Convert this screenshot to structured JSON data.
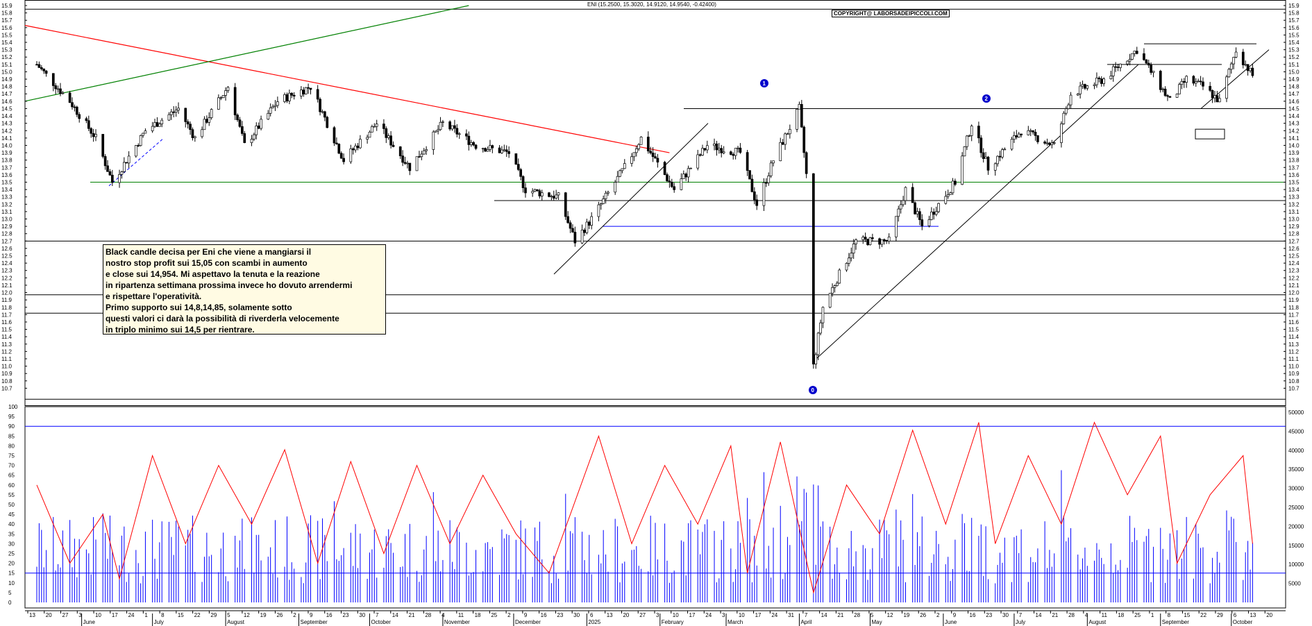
{
  "chart_data": [
    {
      "type": "candlestick",
      "title": "ENI (15.2500, 15.3020, 14.9120, 14.9540, -0.42400)",
      "watermark": "COPYRIGHT@ LABORSADEIPICCOLI.COM",
      "ylim": [
        10.6,
        15.9
      ],
      "y_ticks": [
        "15.9",
        "15.8",
        "15.7",
        "15.6",
        "15.5",
        "15.4",
        "15.3",
        "15.2",
        "15.1",
        "15.0",
        "14.9",
        "14.8",
        "14.7",
        "14.6",
        "14.5",
        "14.4",
        "14.3",
        "14.2",
        "14.1",
        "14.0",
        "13.9",
        "13.8",
        "13.7",
        "13.6",
        "13.5",
        "13.4",
        "13.3",
        "13.2",
        "13.1",
        "13.0",
        "12.9",
        "12.8",
        "12.7",
        "12.6",
        "12.5",
        "12.4",
        "12.3",
        "12.2",
        "12.1",
        "12.0",
        "11.9",
        "11.8",
        "11.7",
        "11.6",
        "11.5",
        "11.4",
        "11.3",
        "11.2",
        "11.1",
        "11.0",
        "10.9",
        "10.8",
        "10.7"
      ],
      "horizontal_levels": [
        15.85,
        14.5,
        13.5,
        13.25,
        12.9,
        12.7,
        11.97,
        11.72,
        10.55
      ],
      "trendlines": [
        {
          "color": "#ff0000",
          "from": [
            "2024-05-08",
            15.63
          ],
          "to": [
            "2025-02-05",
            13.9
          ]
        },
        {
          "color": "#008000",
          "from": [
            "2024-05-08",
            14.6
          ],
          "to": [
            "2024-11-12",
            15.9
          ]
        }
      ],
      "markers": [
        "1",
        "2",
        "0"
      ],
      "series": [
        {
          "x": "2024-05-13",
          "value": 15.1
        },
        {
          "x": "2024-05-27",
          "value": 14.6
        },
        {
          "x": "2024-06-07",
          "value": 14.1
        },
        {
          "x": "2024-06-14",
          "value": 13.5
        },
        {
          "x": "2024-06-28",
          "value": 14.2
        },
        {
          "x": "2024-07-12",
          "value": 14.5
        },
        {
          "x": "2024-07-19",
          "value": 14.1
        },
        {
          "x": "2024-08-02",
          "value": 14.8
        },
        {
          "x": "2024-08-09",
          "value": 14.0
        },
        {
          "x": "2024-08-23",
          "value": 14.6
        },
        {
          "x": "2024-09-06",
          "value": 14.8
        },
        {
          "x": "2024-09-20",
          "value": 13.8
        },
        {
          "x": "2024-10-04",
          "value": 14.3
        },
        {
          "x": "2024-10-18",
          "value": 13.7
        },
        {
          "x": "2024-11-01",
          "value": 14.3
        },
        {
          "x": "2024-11-15",
          "value": 14.0
        },
        {
          "x": "2024-11-29",
          "value": 13.9
        },
        {
          "x": "2024-12-06",
          "value": 13.4
        },
        {
          "x": "2024-12-20",
          "value": 13.3
        },
        {
          "x": "2024-12-27",
          "value": 12.7
        },
        {
          "x": "2025-01-03",
          "value": 13.0
        },
        {
          "x": "2025-01-17",
          "value": 13.7
        },
        {
          "x": "2025-01-24",
          "value": 14.1
        },
        {
          "x": "2025-02-07",
          "value": 13.4
        },
        {
          "x": "2025-02-21",
          "value": 14.0
        },
        {
          "x": "2025-03-07",
          "value": 13.9
        },
        {
          "x": "2025-03-14",
          "value": 13.2
        },
        {
          "x": "2025-03-21",
          "value": 13.8
        },
        {
          "x": "2025-04-01",
          "value": 14.5
        },
        {
          "x": "2025-04-04",
          "value": 13.6
        },
        {
          "x": "2025-04-07",
          "value": 11.0
        },
        {
          "x": "2025-04-11",
          "value": 11.8
        },
        {
          "x": "2025-04-25",
          "value": 12.7
        },
        {
          "x": "2025-05-09",
          "value": 12.7
        },
        {
          "x": "2025-05-16",
          "value": 13.4
        },
        {
          "x": "2025-05-23",
          "value": 12.9
        },
        {
          "x": "2025-06-06",
          "value": 13.5
        },
        {
          "x": "2025-06-13",
          "value": 14.3
        },
        {
          "x": "2025-06-20",
          "value": 13.7
        },
        {
          "x": "2025-07-04",
          "value": 14.2
        },
        {
          "x": "2025-07-18",
          "value": 14.0
        },
        {
          "x": "2025-07-25",
          "value": 14.7
        },
        {
          "x": "2025-08-08",
          "value": 14.9
        },
        {
          "x": "2025-08-22",
          "value": 15.3
        },
        {
          "x": "2025-09-05",
          "value": 14.6
        },
        {
          "x": "2025-09-12",
          "value": 14.9
        },
        {
          "x": "2025-09-19",
          "value": 14.8
        },
        {
          "x": "2025-09-26",
          "value": 14.6
        },
        {
          "x": "2025-10-03",
          "value": 15.3
        },
        {
          "x": "2025-10-10",
          "value": 14.95
        }
      ]
    },
    {
      "type": "line",
      "ylim": [
        0,
        100
      ],
      "y_ticks": [
        "100",
        "95",
        "90",
        "85",
        "80",
        "75",
        "70",
        "65",
        "60",
        "55",
        "50",
        "45",
        "40",
        "35",
        "30",
        "25",
        "20",
        "15",
        "10",
        "5",
        "0"
      ],
      "levels": [
        90,
        15
      ],
      "series": [
        {
          "x": "2024-05-13",
          "value": 60
        },
        {
          "x": "2024-05-27",
          "value": 20
        },
        {
          "x": "2024-06-10",
          "value": 45
        },
        {
          "x": "2024-06-17",
          "value": 12
        },
        {
          "x": "2024-07-01",
          "value": 75
        },
        {
          "x": "2024-07-15",
          "value": 30
        },
        {
          "x": "2024-07-29",
          "value": 70
        },
        {
          "x": "2024-08-12",
          "value": 40
        },
        {
          "x": "2024-08-26",
          "value": 78
        },
        {
          "x": "2024-09-09",
          "value": 20
        },
        {
          "x": "2024-09-23",
          "value": 72
        },
        {
          "x": "2024-10-07",
          "value": 25
        },
        {
          "x": "2024-10-21",
          "value": 70
        },
        {
          "x": "2024-11-04",
          "value": 30
        },
        {
          "x": "2024-11-18",
          "value": 65
        },
        {
          "x": "2024-12-02",
          "value": 35
        },
        {
          "x": "2024-12-16",
          "value": 15
        },
        {
          "x": "2025-01-06",
          "value": 85
        },
        {
          "x": "2025-01-20",
          "value": 30
        },
        {
          "x": "2025-02-03",
          "value": 70
        },
        {
          "x": "2025-02-17",
          "value": 40
        },
        {
          "x": "2025-03-03",
          "value": 80
        },
        {
          "x": "2025-03-10",
          "value": 15
        },
        {
          "x": "2025-03-24",
          "value": 82
        },
        {
          "x": "2025-04-07",
          "value": 5
        },
        {
          "x": "2025-04-21",
          "value": 60
        },
        {
          "x": "2025-05-05",
          "value": 35
        },
        {
          "x": "2025-05-19",
          "value": 88
        },
        {
          "x": "2025-06-02",
          "value": 40
        },
        {
          "x": "2025-06-16",
          "value": 92
        },
        {
          "x": "2025-06-23",
          "value": 30
        },
        {
          "x": "2025-07-07",
          "value": 75
        },
        {
          "x": "2025-07-21",
          "value": 40
        },
        {
          "x": "2025-08-04",
          "value": 92
        },
        {
          "x": "2025-08-18",
          "value": 55
        },
        {
          "x": "2025-09-01",
          "value": 85
        },
        {
          "x": "2025-09-08",
          "value": 20
        },
        {
          "x": "2025-09-22",
          "value": 55
        },
        {
          "x": "2025-10-06",
          "value": 75
        },
        {
          "x": "2025-10-10",
          "value": 30
        }
      ]
    },
    {
      "type": "bar",
      "ylim": [
        0,
        50000
      ],
      "y_ticks": [
        "50000",
        "45000",
        "40000",
        "35000",
        "30000",
        "25000",
        "20000",
        "15000",
        "10000",
        "5000"
      ],
      "note": "volume"
    }
  ],
  "x_axis": {
    "days": [
      "13",
      "20",
      "27",
      "3",
      "10",
      "17",
      "24",
      "1",
      "8",
      "15",
      "22",
      "29",
      "5",
      "12",
      "19",
      "26",
      "2",
      "9",
      "16",
      "23",
      "30",
      "7",
      "14",
      "21",
      "28",
      "4",
      "11",
      "18",
      "25",
      "2",
      "9",
      "16",
      "23",
      "30",
      "6",
      "13",
      "20",
      "27",
      "3",
      "10",
      "17",
      "24",
      "3",
      "10",
      "17",
      "24",
      "31",
      "7",
      "14",
      "21",
      "28",
      "5",
      "12",
      "19",
      "26",
      "2",
      "9",
      "16",
      "23",
      "30",
      "7",
      "14",
      "21",
      "28",
      "4",
      "11",
      "18",
      "25",
      "1",
      "8",
      "15",
      "22",
      "29",
      "6",
      "13",
      "20"
    ],
    "months": [
      "June",
      "July",
      "August",
      "September",
      "October",
      "November",
      "December",
      "2025",
      "February",
      "March",
      "April",
      "May",
      "June",
      "July",
      "August",
      "September",
      "October"
    ]
  },
  "annotation": {
    "lines": [
      "Black candle decisa per Eni che viene a mangiarsi il",
      "nostro stop profit sui 15,05 con scambi in aumento",
      "e close sui 14,954. Mi aspettavo la tenuta e la reazione",
      "in ripartenza settimana prossima invece ho dovuto arrendermi",
      "e rispettare l'operatività.",
      "Primo supporto sui 14,8,14,85, solamente sotto",
      "questi valori ci darà la possibilità di riverderla velocemente",
      "in triplo minimo sui 14,5 per rientrare."
    ]
  },
  "colors": {
    "price_line": "#000000",
    "trend_red": "#ff0000",
    "trend_green": "#008000",
    "level_blue": "#0000ff",
    "volume": "#0000ff",
    "oscillator": "#ff0000"
  }
}
